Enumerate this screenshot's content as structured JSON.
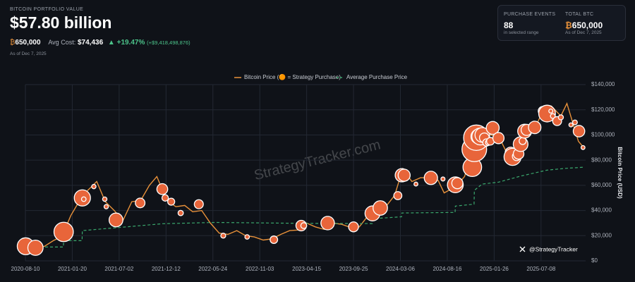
{
  "header": {
    "title": "BITCOIN PORTFOLIO VALUE",
    "value": "$57.80 billion",
    "btc_symbol": "₿",
    "holdings": "650,000",
    "avg_cost_label": "Avg Cost:",
    "avg_cost": "$74,436",
    "change": "▲ +19.47%",
    "change_amount": "(+$9,418,498,876)",
    "as_of": "As of Dec 7, 2025"
  },
  "stats": [
    {
      "label": "PURCHASE EVENTS",
      "value": "88",
      "note": "in selected range"
    },
    {
      "label": "TOTAL BTC",
      "value": "650,000",
      "note": "As of Dec 7, 2025"
    }
  ],
  "watermark": "StrategyTracker.com",
  "handle": "@StrategyTracker",
  "chart_data": {
    "type": "line",
    "y_axis_title": "Bitcoin Price (USD)",
    "grid": true,
    "xlim": [
      "2020-08-10",
      "2025-12-10"
    ],
    "xticks": [
      "2020-08-10",
      "2021-01-20",
      "2021-07-02",
      "2021-12-12",
      "2022-05-24",
      "2022-11-03",
      "2023-04-15",
      "2023-09-25",
      "2024-03-06",
      "2024-08-16",
      "2025-01-26",
      "2025-07-08"
    ],
    "ylim": [
      0,
      140000
    ],
    "yticks": [
      {
        "value": 0,
        "label": "$0"
      },
      {
        "value": 20000,
        "label": "$20,000"
      },
      {
        "value": 40000,
        "label": "$40,000"
      },
      {
        "value": 60000,
        "label": "$60,000"
      },
      {
        "value": 80000,
        "label": "$80,000"
      },
      {
        "value": 100000,
        "label": "$100,000"
      },
      {
        "value": 120000,
        "label": "$120,000"
      },
      {
        "value": 140000,
        "label": "$140,000"
      }
    ],
    "series": [
      {
        "name": "Bitcoin Price (🟠 = Strategy Purchase)",
        "color": "#e8913a",
        "dashed": false,
        "x": [
          "2020-08-10",
          "2020-09-15",
          "2020-10-15",
          "2020-11-15",
          "2020-12-15",
          "2021-01-15",
          "2021-02-15",
          "2021-03-15",
          "2021-04-15",
          "2021-05-15",
          "2021-06-15",
          "2021-07-15",
          "2021-08-15",
          "2021-09-15",
          "2021-10-15",
          "2021-11-10",
          "2021-12-15",
          "2022-01-15",
          "2022-02-15",
          "2022-03-15",
          "2022-04-15",
          "2022-05-15",
          "2022-06-15",
          "2022-07-15",
          "2022-08-15",
          "2022-09-15",
          "2022-10-15",
          "2022-11-15",
          "2022-12-15",
          "2023-01-15",
          "2023-02-15",
          "2023-03-15",
          "2023-04-15",
          "2023-05-15",
          "2023-06-15",
          "2023-07-15",
          "2023-08-15",
          "2023-09-15",
          "2023-10-15",
          "2023-11-15",
          "2023-12-15",
          "2024-01-15",
          "2024-02-15",
          "2024-03-14",
          "2024-04-15",
          "2024-05-15",
          "2024-06-15",
          "2024-07-15",
          "2024-08-05",
          "2024-09-15",
          "2024-10-15",
          "2024-11-15",
          "2024-12-15",
          "2025-01-15",
          "2025-02-15",
          "2025-03-15",
          "2025-04-08",
          "2025-05-15",
          "2025-06-15",
          "2025-07-15",
          "2025-08-13",
          "2025-09-15",
          "2025-10-06",
          "2025-11-15",
          "2025-12-07"
        ],
        "values": [
          11500,
          10800,
          11500,
          16000,
          19500,
          36000,
          48000,
          56000,
          63000,
          47000,
          40000,
          32000,
          47000,
          48000,
          60000,
          67000,
          48000,
          43000,
          44000,
          39000,
          40000,
          30000,
          22000,
          21000,
          24000,
          20000,
          19000,
          16500,
          17500,
          21000,
          24000,
          24500,
          30000,
          27000,
          25000,
          30000,
          29000,
          26500,
          27000,
          36000,
          42000,
          43000,
          52000,
          73000,
          63000,
          66000,
          66000,
          64000,
          54000,
          59000,
          67000,
          90000,
          104000,
          100000,
          97000,
          84000,
          77000,
          103000,
          105000,
          119000,
          123000,
          115000,
          125000,
          95000,
          89000
        ]
      },
      {
        "name": "Average Purchase Price",
        "color": "#3aa76d",
        "dashed": true,
        "x": [
          "2020-08-10",
          "2020-12-20",
          "2020-12-21",
          "2021-02-23",
          "2021-02-24",
          "2021-07-01",
          "2021-12-01",
          "2022-06-01",
          "2023-04-01",
          "2023-11-29",
          "2023-11-30",
          "2024-03-10",
          "2024-03-11",
          "2024-09-12",
          "2024-09-13",
          "2024-11-17",
          "2024-11-18",
          "2024-12-15",
          "2025-02-10",
          "2025-05-01",
          "2025-07-28",
          "2025-10-01",
          "2025-12-07"
        ],
        "values": [
          11000,
          11000,
          16000,
          16000,
          24000,
          26500,
          29500,
          30500,
          29800,
          29600,
          33500,
          35000,
          38000,
          38500,
          43500,
          45000,
          56000,
          61000,
          62500,
          67500,
          72000,
          73500,
          74436
        ]
      }
    ],
    "purchases": {
      "color": "#e8653a",
      "x": [
        "2020-08-11",
        "2020-09-14",
        "2020-12-21",
        "2021-02-24",
        "2021-03-01",
        "2021-04-05",
        "2021-05-13",
        "2021-05-18",
        "2021-06-21",
        "2021-09-13",
        "2021-11-29",
        "2021-12-09",
        "2021-12-30",
        "2022-02-01",
        "2022-04-05",
        "2022-06-29",
        "2022-09-20",
        "2022-12-22",
        "2023-03-27",
        "2023-04-05",
        "2023-06-27",
        "2023-09-25",
        "2023-11-30",
        "2023-12-27",
        "2024-02-26",
        "2024-03-11",
        "2024-03-19",
        "2024-04-29",
        "2024-06-20",
        "2024-08-01",
        "2024-09-13",
        "2024-09-20",
        "2024-11-11",
        "2024-11-18",
        "2024-11-25",
        "2024-12-02",
        "2024-12-09",
        "2024-12-16",
        "2024-12-23",
        "2024-12-30",
        "2025-01-06",
        "2025-01-13",
        "2025-01-21",
        "2025-02-10",
        "2025-03-17",
        "2025-03-24",
        "2025-03-31",
        "2025-04-14",
        "2025-04-21",
        "2025-04-28",
        "2025-05-05",
        "2025-05-12",
        "2025-05-19",
        "2025-06-16",
        "2025-07-14",
        "2025-07-21",
        "2025-07-29",
        "2025-08-11",
        "2025-08-18",
        "2025-09-02",
        "2025-09-15",
        "2025-10-20",
        "2025-11-03",
        "2025-11-17",
        "2025-12-01"
      ],
      "values": [
        11600,
        10400,
        23000,
        50000,
        49000,
        59000,
        49000,
        43000,
        32500,
        46000,
        57000,
        50000,
        47000,
        38000,
        45000,
        20000,
        19000,
        16800,
        28000,
        28000,
        30000,
        27000,
        37700,
        42000,
        51800,
        68000,
        68000,
        61000,
        65900,
        65000,
        60400,
        61700,
        74400,
        88600,
        97800,
        98800,
        98800,
        100000,
        97700,
        94000,
        94000,
        95000,
        105600,
        97500,
        84000,
        86000,
        82600,
        83000,
        85000,
        92700,
        95200,
        103000,
        104000,
        106000,
        119000,
        119000,
        117000,
        119000,
        115000,
        111000,
        114000,
        108000,
        110000,
        103000,
        90000
      ],
      "sizes": [
        21454,
        16796,
        29646,
        19452,
        328,
        253,
        271,
        229,
        13005,
        5050,
        7002,
        1434,
        1914,
        660,
        4167,
        480,
        301,
        2395,
        6455,
        1045,
        12333,
        5445,
        16130,
        14620,
        3000,
        12000,
        9245,
        122,
        11931,
        169,
        18300,
        7420,
        27200,
        51780,
        55500,
        15400,
        21550,
        15350,
        5262,
        2138,
        1070,
        2530,
        11000,
        7633,
        130,
        6911,
        22048,
        3459,
        6556,
        15355,
        1895,
        13390,
        7390,
        10100,
        4225,
        6220,
        21021,
        155,
        430,
        4048,
        525,
        168,
        397,
        8178,
        130
      ]
    }
  }
}
